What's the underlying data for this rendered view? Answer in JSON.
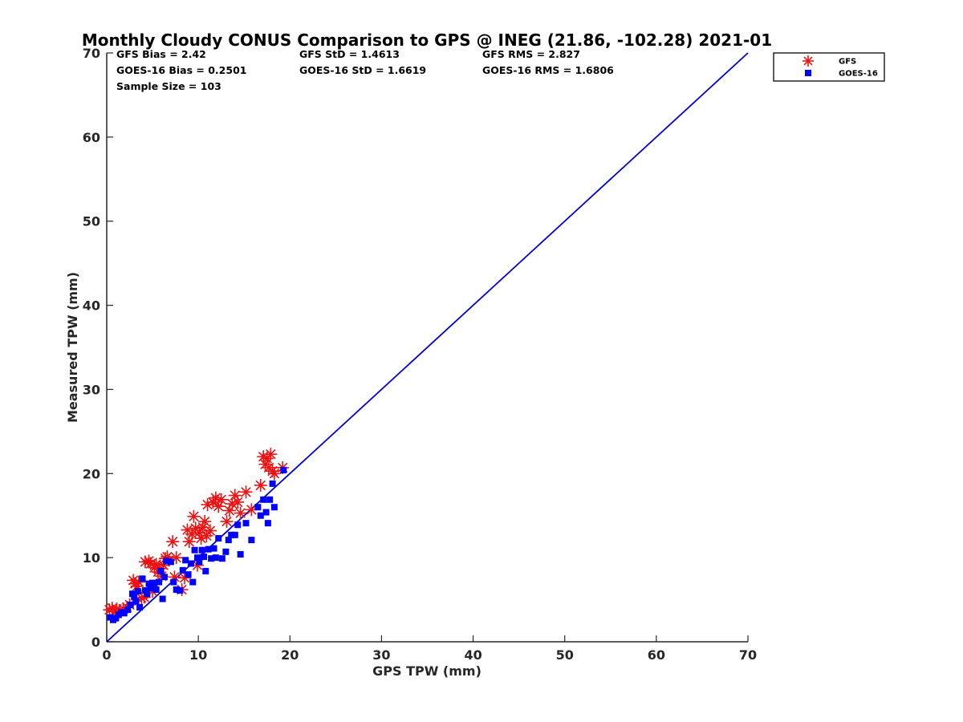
{
  "chart_data": {
    "type": "scatter",
    "title": "Monthly Cloudy CONUS Comparison to GPS @ INEG (21.86, -102.28) 2021-01",
    "xlabel": "GPS TPW (mm)",
    "ylabel": "Measured TPW (mm)",
    "xlim": [
      0,
      70
    ],
    "ylim": [
      0,
      70
    ],
    "xticks": [
      0,
      10,
      20,
      30,
      40,
      50,
      60,
      70
    ],
    "yticks": [
      0,
      10,
      20,
      30,
      40,
      50,
      60,
      70
    ],
    "legend_position": "top-right outside",
    "stats": {
      "gfs_bias": "GFS Bias = 2.42",
      "gfs_std": "GFS StD = 1.4613",
      "gfs_rms": "GFS RMS = 2.827",
      "goes_bias": "GOES-16 Bias = 0.2501",
      "goes_std": "GOES-16 StD = 1.6619",
      "goes_rms": "GOES-16 RMS = 1.6806",
      "sample_size": "Sample Size = 103"
    },
    "reference_line": {
      "name": "1:1",
      "color": "#0000dd",
      "points": [
        [
          0,
          0
        ],
        [
          70,
          70
        ]
      ]
    },
    "series": [
      {
        "name": "GFS",
        "marker": "asterisk",
        "color": "#ee1111",
        "points": [
          [
            0.3,
            3.8
          ],
          [
            0.6,
            4.0
          ],
          [
            0.9,
            3.6
          ],
          [
            1.1,
            3.9
          ],
          [
            1.4,
            3.7
          ],
          [
            1.8,
            3.9
          ],
          [
            2.2,
            4.1
          ],
          [
            2.5,
            4.4
          ],
          [
            2.9,
            7.3
          ],
          [
            3.1,
            6.9
          ],
          [
            3.3,
            6.6
          ],
          [
            3.5,
            7.1
          ],
          [
            3.8,
            5.2
          ],
          [
            4.1,
            5.3
          ],
          [
            4.2,
            9.5
          ],
          [
            4.6,
            9.6
          ],
          [
            4.8,
            9.3
          ],
          [
            5.0,
            6.0
          ],
          [
            5.2,
            8.8
          ],
          [
            5.4,
            9.2
          ],
          [
            5.6,
            8.3
          ],
          [
            5.8,
            8.7
          ],
          [
            6.0,
            7.8
          ],
          [
            6.2,
            9.1
          ],
          [
            6.4,
            9.9
          ],
          [
            6.6,
            10.1
          ],
          [
            6.8,
            9.7
          ],
          [
            7.2,
            11.9
          ],
          [
            7.4,
            7.7
          ],
          [
            7.6,
            10.0
          ],
          [
            8.2,
            6.2
          ],
          [
            8.5,
            7.6
          ],
          [
            8.8,
            13.3
          ],
          [
            9.0,
            11.9
          ],
          [
            9.3,
            12.8
          ],
          [
            9.5,
            14.9
          ],
          [
            9.7,
            13.5
          ],
          [
            9.9,
            9.1
          ],
          [
            10.1,
            13.0
          ],
          [
            10.3,
            12.3
          ],
          [
            10.5,
            13.6
          ],
          [
            10.7,
            14.3
          ],
          [
            10.9,
            12.6
          ],
          [
            11.0,
            16.3
          ],
          [
            11.3,
            13.2
          ],
          [
            11.6,
            16.6
          ],
          [
            11.9,
            17.1
          ],
          [
            12.2,
            16.1
          ],
          [
            12.5,
            16.9
          ],
          [
            13.1,
            14.3
          ],
          [
            13.4,
            15.6
          ],
          [
            13.7,
            16.4
          ],
          [
            14.0,
            17.4
          ],
          [
            14.3,
            16.6
          ],
          [
            14.6,
            15.3
          ],
          [
            15.2,
            17.8
          ],
          [
            15.8,
            15.7
          ],
          [
            16.8,
            18.6
          ],
          [
            17.1,
            22.0
          ],
          [
            17.3,
            21.1
          ],
          [
            17.5,
            21.8
          ],
          [
            17.7,
            20.7
          ],
          [
            17.9,
            22.3
          ],
          [
            18.1,
            20.3
          ],
          [
            18.3,
            20.0
          ],
          [
            19.2,
            20.7
          ]
        ]
      },
      {
        "name": "GOES-16",
        "marker": "square",
        "color": "#0000ff",
        "points": [
          [
            0.4,
            2.9
          ],
          [
            0.7,
            2.6
          ],
          [
            1.0,
            2.8
          ],
          [
            1.3,
            3.2
          ],
          [
            1.6,
            3.5
          ],
          [
            1.9,
            3.4
          ],
          [
            2.3,
            3.8
          ],
          [
            2.6,
            4.4
          ],
          [
            2.8,
            5.7
          ],
          [
            3.0,
            5.3
          ],
          [
            3.2,
            4.8
          ],
          [
            3.4,
            6.0
          ],
          [
            3.6,
            4.1
          ],
          [
            3.9,
            7.5
          ],
          [
            4.2,
            6.1
          ],
          [
            4.4,
            5.7
          ],
          [
            4.6,
            6.9
          ],
          [
            4.8,
            6.4
          ],
          [
            5.0,
            7.0
          ],
          [
            5.2,
            6.6
          ],
          [
            5.4,
            6.2
          ],
          [
            5.7,
            7.1
          ],
          [
            5.9,
            8.4
          ],
          [
            6.1,
            5.1
          ],
          [
            6.3,
            7.7
          ],
          [
            6.5,
            9.6
          ],
          [
            7.0,
            9.5
          ],
          [
            7.3,
            7.1
          ],
          [
            7.6,
            6.2
          ],
          [
            8.0,
            6.1
          ],
          [
            8.3,
            8.5
          ],
          [
            8.6,
            9.7
          ],
          [
            8.9,
            8.0
          ],
          [
            9.2,
            9.3
          ],
          [
            9.4,
            7.1
          ],
          [
            9.6,
            10.9
          ],
          [
            9.9,
            10.0
          ],
          [
            10.1,
            9.5
          ],
          [
            10.4,
            10.9
          ],
          [
            10.6,
            10.1
          ],
          [
            10.8,
            8.4
          ],
          [
            11.1,
            11.0
          ],
          [
            11.4,
            9.9
          ],
          [
            11.7,
            11.1
          ],
          [
            11.9,
            10.0
          ],
          [
            12.2,
            12.3
          ],
          [
            12.6,
            9.9
          ],
          [
            13.0,
            10.7
          ],
          [
            13.3,
            12.1
          ],
          [
            13.6,
            12.7
          ],
          [
            14.0,
            12.7
          ],
          [
            14.3,
            13.9
          ],
          [
            14.6,
            10.4
          ],
          [
            15.2,
            14.1
          ],
          [
            15.8,
            12.1
          ],
          [
            16.5,
            16.0
          ],
          [
            16.8,
            15.0
          ],
          [
            17.1,
            16.9
          ],
          [
            17.4,
            15.4
          ],
          [
            17.6,
            14.1
          ],
          [
            17.8,
            16.9
          ],
          [
            18.1,
            18.8
          ],
          [
            18.3,
            16.0
          ],
          [
            19.3,
            20.4
          ]
        ]
      }
    ]
  }
}
